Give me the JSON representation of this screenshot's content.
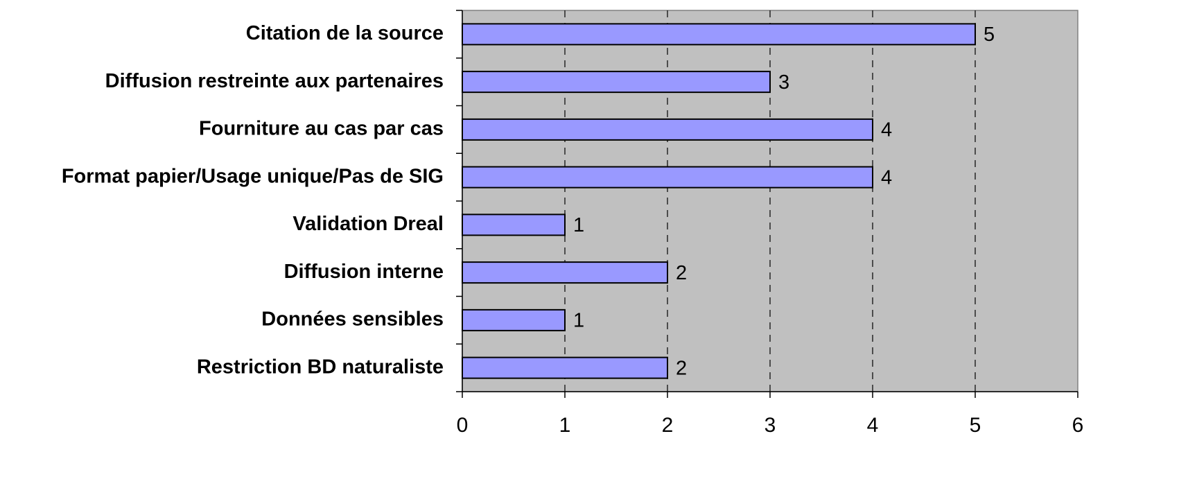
{
  "chart_data": {
    "type": "bar",
    "orientation": "horizontal",
    "categories": [
      "Citation de la source",
      "Diffusion restreinte aux partenaires",
      "Fourniture au cas par cas",
      "Format papier/Usage unique/Pas de SIG",
      "Validation Dreal",
      "Diffusion interne",
      "Données sensibles",
      "Restriction BD naturaliste"
    ],
    "values": [
      5,
      3,
      4,
      4,
      1,
      2,
      1,
      2
    ],
    "color": "#9999ff",
    "xlim": [
      0,
      6
    ],
    "xticks": [
      0,
      1,
      2,
      3,
      4,
      5,
      6
    ],
    "grid": true
  }
}
